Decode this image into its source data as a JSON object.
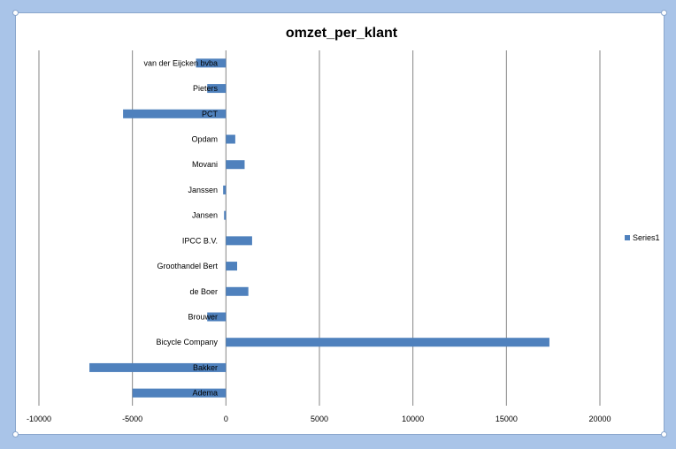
{
  "chart_data": {
    "type": "bar",
    "orientation": "horizontal",
    "title": "omzet_per_klant",
    "categories": [
      "van der Eijcken bvba",
      "Pieters",
      "PCT",
      "Opdam",
      "Movani",
      "Janssen",
      "Jansen",
      "IPCC B.V.",
      "Groothandel Bert",
      "de Boer",
      "Brouwer",
      "Bicycle Company",
      "Bakker",
      "Adema"
    ],
    "series": [
      {
        "name": "Series1",
        "color": "#4f81bd",
        "values": [
          -1600,
          -1000,
          -5500,
          500,
          1000,
          -150,
          -100,
          1400,
          600,
          1200,
          -1000,
          17300,
          -7300,
          -5000
        ]
      }
    ],
    "xlim": [
      -10000,
      20000
    ],
    "xticks": [
      "-10000",
      "-5000",
      "0",
      "5000",
      "10000",
      "15000",
      "20000"
    ],
    "grid": true,
    "legend_position": "right"
  }
}
